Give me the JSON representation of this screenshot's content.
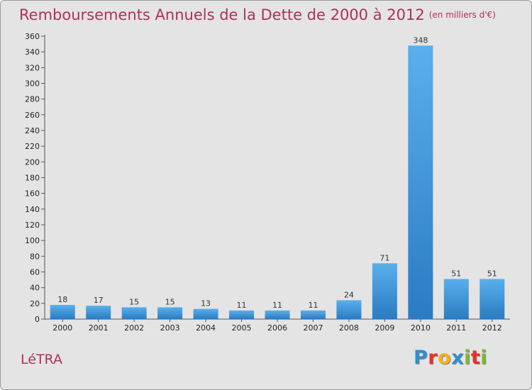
{
  "title": "Remboursements Annuels de la Dette de 2000 à 2012",
  "unit": "(en milliers d'€)",
  "commune": "LéTRA",
  "logo": {
    "letters": [
      "P",
      "r",
      "o",
      "x",
      "i",
      "t",
      "i"
    ],
    "colors": [
      "#2f8fd0",
      "#e8302a",
      "#f0b020",
      "#2f8fd0",
      "#7cb830",
      "#e8302a",
      "#7cb830"
    ]
  },
  "chart_data": {
    "type": "bar",
    "categories": [
      "2000",
      "2001",
      "2002",
      "2003",
      "2004",
      "2005",
      "2006",
      "2007",
      "2008",
      "2009",
      "2010",
      "2011",
      "2012"
    ],
    "values": [
      18,
      17,
      15,
      15,
      13,
      11,
      11,
      11,
      24,
      71,
      348,
      51,
      51
    ],
    "ylim": [
      0,
      360
    ],
    "ytick_step": 20,
    "grid": false,
    "colors": {
      "bar_light": "#5aafec",
      "bar_dark": "#2a7bc2",
      "axis": "#555555"
    }
  }
}
